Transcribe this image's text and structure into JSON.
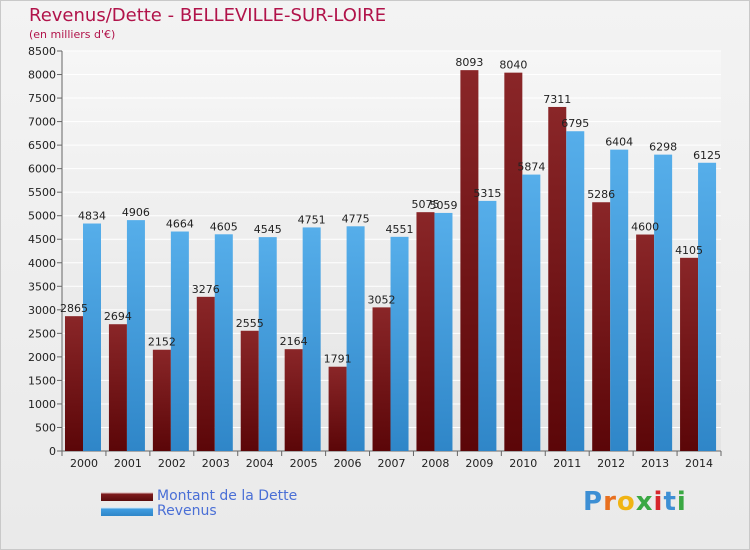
{
  "chart_data": {
    "type": "bar",
    "title": "Revenus/Dette - BELLEVILLE-SUR-LOIRE",
    "subtitle": "(en milliers d'€)",
    "categories": [
      "2000",
      "2001",
      "2002",
      "2003",
      "2004",
      "2005",
      "2006",
      "2007",
      "2008",
      "2009",
      "2010",
      "2011",
      "2012",
      "2013",
      "2014"
    ],
    "series": [
      {
        "name": "Montant de la Dette",
        "color": "#7d1a1c",
        "values": [
          2865,
          2694,
          2152,
          3276,
          2555,
          2164,
          1791,
          3052,
          5075,
          8093,
          8040,
          7311,
          5286,
          4600,
          4105
        ]
      },
      {
        "name": "Revenus",
        "color": "#3f9ce0",
        "values": [
          4834,
          4906,
          4664,
          4605,
          4545,
          4751,
          4775,
          4551,
          5059,
          5315,
          5874,
          6795,
          6404,
          6298,
          6125
        ]
      }
    ],
    "bar_labels": [
      [
        "2865",
        "2694",
        "2152",
        "3276",
        "2555",
        "2164",
        "1791",
        "3052",
        "5075",
        "8093",
        "8040",
        "7311",
        "5286",
        "4600",
        "4105"
      ],
      [
        "4834",
        "4906",
        "4664",
        "4605",
        "4545",
        "4751",
        "4775",
        "4551",
        "5059",
        "5315",
        "5874",
        "6795",
        "6404",
        "6298",
        "6125"
      ]
    ],
    "ylim": [
      0,
      8500
    ],
    "yticks": [
      0,
      500,
      1000,
      1500,
      2000,
      2500,
      3000,
      3500,
      4000,
      4500,
      5000,
      5500,
      6000,
      6500,
      7000,
      7500,
      8000,
      8500
    ],
    "grid": true,
    "legend_position": "bottom-left"
  },
  "legend": {
    "items": [
      {
        "label": "Montant de la Dette",
        "color": "#7d1a1c"
      },
      {
        "label": "Revenus",
        "color": "#3f9ce0"
      }
    ]
  },
  "logo": {
    "letters": [
      "P",
      "r",
      "o",
      "x",
      "i",
      "t",
      "i"
    ],
    "colors": [
      "#3d8fd4",
      "#e8701f",
      "#f0b414",
      "#3aa843",
      "#d6262c",
      "#3d8fd4",
      "#3aa843"
    ]
  }
}
